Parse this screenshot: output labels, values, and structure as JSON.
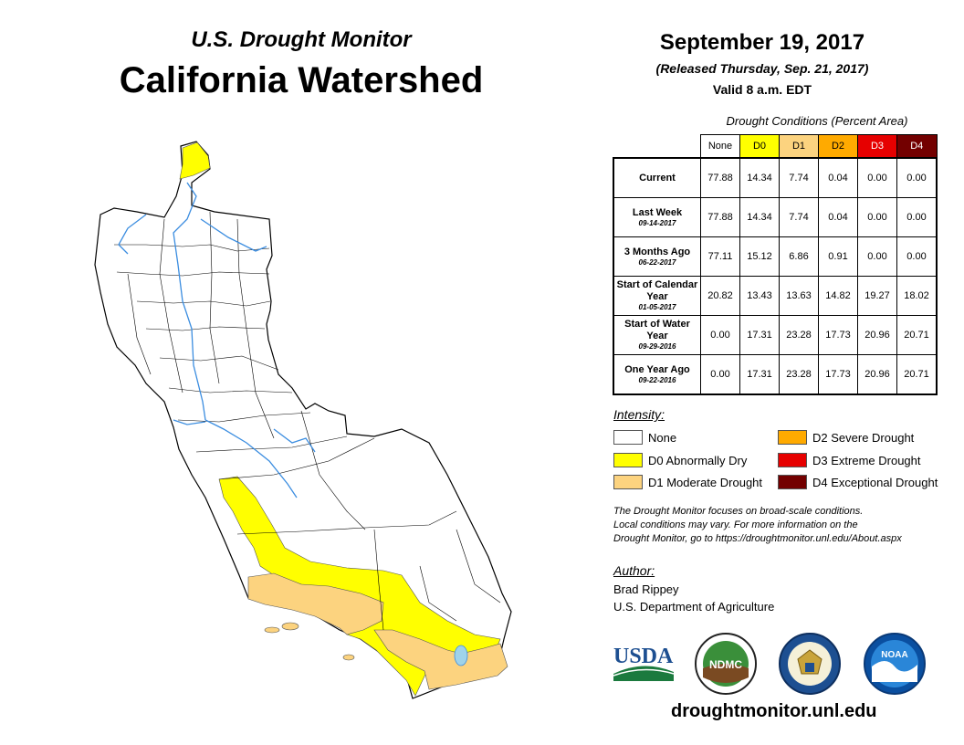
{
  "header": {
    "subtitle": "U.S. Drought Monitor",
    "title": "California Watershed"
  },
  "date_block": {
    "date": "September 19, 2017",
    "released": "(Released Thursday, Sep. 21, 2017)",
    "valid": "Valid 8 a.m. EDT"
  },
  "table": {
    "caption": "Drought Conditions (Percent Area)",
    "columns": [
      "None",
      "D0",
      "D1",
      "D2",
      "D3",
      "D4"
    ],
    "column_colors": [
      "#ffffff",
      "#ffff00",
      "#fcd37f",
      "#ffaa00",
      "#e60000",
      "#730000"
    ],
    "rows": [
      {
        "label": "Current",
        "date": "",
        "values": [
          "77.88",
          "14.34",
          "7.74",
          "0.04",
          "0.00",
          "0.00"
        ]
      },
      {
        "label": "Last Week",
        "date": "09-14-2017",
        "values": [
          "77.88",
          "14.34",
          "7.74",
          "0.04",
          "0.00",
          "0.00"
        ]
      },
      {
        "label": "3 Months Ago",
        "date": "06-22-2017",
        "values": [
          "77.11",
          "15.12",
          "6.86",
          "0.91",
          "0.00",
          "0.00"
        ]
      },
      {
        "label": "Start of Calendar Year",
        "date": "01-05-2017",
        "values": [
          "20.82",
          "13.43",
          "13.63",
          "14.82",
          "19.27",
          "18.02"
        ]
      },
      {
        "label": "Start of Water Year",
        "date": "09-29-2016",
        "values": [
          "0.00",
          "17.31",
          "23.28",
          "17.73",
          "20.96",
          "20.71"
        ]
      },
      {
        "label": "One Year Ago",
        "date": "09-22-2016",
        "values": [
          "0.00",
          "17.31",
          "23.28",
          "17.73",
          "20.96",
          "20.71"
        ]
      }
    ]
  },
  "legend": {
    "title": "Intensity:",
    "items": [
      {
        "label": "None",
        "color": "#ffffff"
      },
      {
        "label": "D0 Abnormally Dry",
        "color": "#ffff00"
      },
      {
        "label": "D1 Moderate Drought",
        "color": "#fcd37f"
      },
      {
        "label": "D2 Severe Drought",
        "color": "#ffaa00"
      },
      {
        "label": "D3 Extreme Drought",
        "color": "#e60000"
      },
      {
        "label": "D4 Exceptional Drought",
        "color": "#730000"
      }
    ]
  },
  "note": {
    "line1": "The Drought Monitor focuses on broad-scale conditions.",
    "line2": "Local conditions may vary. For more information on the",
    "line3": "Drought Monitor, go to https://droughtmonitor.unl.edu/About.aspx"
  },
  "author": {
    "label": "Author:",
    "name": "Brad Rippey",
    "org": "U.S. Department of Agriculture"
  },
  "logos": {
    "usda": "USDA",
    "ndmc": "NDMC",
    "noaa": "NOAA",
    "doc_icon": "commerce-seal-icon"
  },
  "footer": {
    "url": "droughtmonitor.unl.edu"
  }
}
